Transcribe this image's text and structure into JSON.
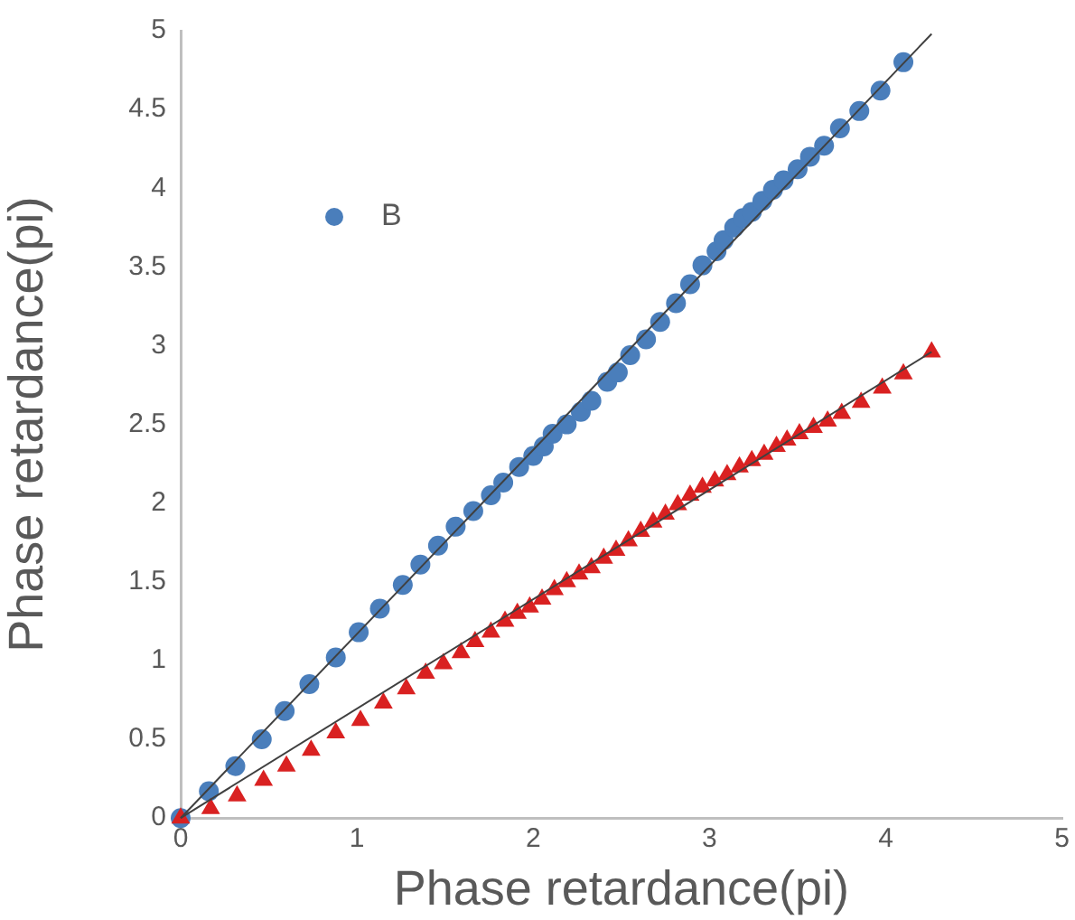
{
  "chart_data": {
    "type": "scatter",
    "xlabel": "Phase retardance(pi)",
    "ylabel": "Phase retardance(pi)",
    "xlim": [
      0,
      5
    ],
    "xticks": [
      0,
      1,
      2,
      3,
      4,
      5
    ],
    "ylim": [
      0,
      5
    ],
    "yticks": [
      0,
      0.5,
      1,
      1.5,
      2,
      2.5,
      3,
      3.5,
      4,
      4.5,
      5
    ],
    "grid": false,
    "legend": "top left",
    "series": [
      {
        "name": "B",
        "color": "#4a7ebb",
        "marker": "circle",
        "x": [
          0,
          0.16,
          0.31,
          0.46,
          0.59,
          0.73,
          0.88,
          1.01,
          1.13,
          1.26,
          1.36,
          1.46,
          1.56,
          1.66,
          1.76,
          1.83,
          1.92,
          2.0,
          2.06,
          2.11,
          2.19,
          2.27,
          2.33,
          2.42,
          2.48,
          2.55,
          2.64,
          2.72,
          2.81,
          2.89,
          2.96,
          3.04,
          3.08,
          3.14,
          3.19,
          3.24,
          3.3,
          3.36,
          3.42,
          3.5,
          3.57,
          3.65,
          3.74,
          3.85,
          3.97,
          4.1
        ],
        "values": [
          0,
          0.17,
          0.33,
          0.5,
          0.68,
          0.85,
          1.02,
          1.18,
          1.33,
          1.48,
          1.61,
          1.73,
          1.85,
          1.95,
          2.05,
          2.13,
          2.23,
          2.3,
          2.36,
          2.44,
          2.5,
          2.58,
          2.65,
          2.77,
          2.83,
          2.94,
          3.04,
          3.15,
          3.27,
          3.39,
          3.51,
          3.6,
          3.67,
          3.75,
          3.81,
          3.85,
          3.92,
          3.99,
          4.05,
          4.12,
          4.2,
          4.27,
          4.38,
          4.49,
          4.62,
          4.8
        ]
      },
      {
        "color": "#d92121",
        "marker": "triangle",
        "x": [
          0,
          0.17,
          0.32,
          0.47,
          0.6,
          0.74,
          0.88,
          1.02,
          1.15,
          1.28,
          1.39,
          1.49,
          1.59,
          1.67,
          1.76,
          1.84,
          1.91,
          1.98,
          2.05,
          2.12,
          2.19,
          2.26,
          2.33,
          2.4,
          2.47,
          2.54,
          2.61,
          2.68,
          2.75,
          2.82,
          2.89,
          2.96,
          3.03,
          3.1,
          3.17,
          3.24,
          3.31,
          3.38,
          3.44,
          3.51,
          3.59,
          3.67,
          3.75,
          3.86,
          3.98,
          4.1,
          4.26
        ],
        "values": [
          0,
          0.06,
          0.14,
          0.24,
          0.33,
          0.43,
          0.54,
          0.62,
          0.73,
          0.82,
          0.92,
          0.98,
          1.05,
          1.12,
          1.18,
          1.25,
          1.3,
          1.34,
          1.39,
          1.45,
          1.5,
          1.55,
          1.59,
          1.65,
          1.7,
          1.76,
          1.82,
          1.88,
          1.93,
          1.99,
          2.05,
          2.1,
          2.14,
          2.18,
          2.23,
          2.27,
          2.31,
          2.36,
          2.4,
          2.44,
          2.48,
          2.52,
          2.57,
          2.64,
          2.73,
          2.82,
          2.96
        ]
      },
      {
        "type": "line",
        "color": "#404040",
        "marker": "none",
        "x": [
          0,
          4.26
        ],
        "values": [
          0,
          4.98
        ]
      },
      {
        "type": "line",
        "color": "#404040",
        "marker": "none",
        "x": [
          0,
          4.26
        ],
        "values": [
          0,
          2.96
        ]
      }
    ]
  }
}
